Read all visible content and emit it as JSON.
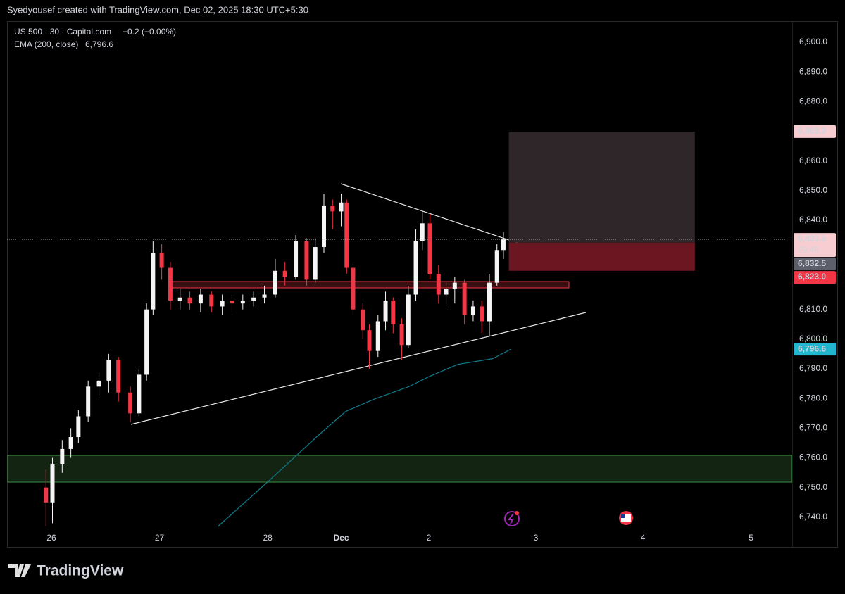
{
  "header": {
    "text": "Syedyousef created with TradingView.com, Dec 02, 2025 18:30 UTC+5:30"
  },
  "chart_data": {
    "type": "candlestick",
    "symbol": "US 500 · 30 · Capital.com",
    "change": "−0.2 (−0.00%)",
    "up_color": "#f5f5f5",
    "down_color": "#f23645",
    "x": [
      -0.05,
      0.01,
      0.1,
      0.18,
      0.25,
      0.34,
      0.44,
      0.53,
      0.62,
      0.73,
      0.81,
      0.88,
      0.94,
      1.02,
      1.1,
      1.19,
      1.28,
      1.38,
      1.48,
      1.58,
      1.67,
      1.77,
      1.87,
      1.97,
      2.07,
      2.16,
      2.26,
      2.36,
      2.44,
      2.52,
      2.6,
      2.68,
      2.73,
      2.79,
      2.88,
      2.94,
      3.02,
      3.09,
      3.16,
      3.24,
      3.3,
      3.37,
      3.43,
      3.5,
      3.58,
      3.65,
      3.73,
      3.82,
      3.9,
      3.98,
      4.05,
      4.12,
      4.18
    ],
    "open": [
      6750,
      6745,
      6758,
      6763,
      6767,
      6774,
      6784,
      6786,
      6793,
      6782,
      6775,
      6788,
      6810,
      6829,
      6824,
      6813,
      6814,
      6812,
      6815,
      6811,
      6813,
      6812,
      6813,
      6814,
      6815,
      6823,
      6821,
      6833,
      6820,
      6831,
      6845,
      6843,
      6846,
      6824,
      6810,
      6803,
      6796,
      6806,
      6813,
      6805,
      6798,
      6815,
      6833,
      6839,
      6822,
      6815,
      6817,
      6819,
      6808,
      6811,
      6806,
      6819,
      6830
    ],
    "high": [
      6756,
      6760,
      6766,
      6770,
      6776,
      6786,
      6789,
      6795,
      6794,
      6784,
      6790,
      6812,
      6833,
      6832,
      6826,
      6817,
      6816,
      6817,
      6816,
      6815,
      6815,
      6815,
      6816,
      6818,
      6827,
      6826,
      6835,
      6834,
      6834,
      6849,
      6847,
      6849,
      6847,
      6826,
      6812,
      6805,
      6808,
      6816,
      6814,
      6807,
      6818,
      6837,
      6843,
      6842,
      6825,
      6819,
      6821,
      6820,
      6813,
      6813,
      6822,
      6832,
      6836
    ],
    "low": [
      6737,
      6738,
      6755,
      6760,
      6765,
      6772,
      6780,
      6782,
      6779,
      6772,
      6774,
      6786,
      6808,
      6820,
      6810,
      6810,
      6810,
      6809,
      6809,
      6808,
      6809,
      6810,
      6811,
      6812,
      6814,
      6818,
      6820,
      6818,
      6819,
      6829,
      6837,
      6838,
      6822,
      6808,
      6800,
      6790,
      6794,
      6803,
      6802,
      6793,
      6797,
      6813,
      6830,
      6820,
      6812,
      6811,
      6812,
      6805,
      6806,
      6802,
      6801,
      6818,
      6827
    ],
    "close": [
      6745,
      6758,
      6763,
      6767,
      6774,
      6784,
      6786,
      6793,
      6782,
      6775,
      6788,
      6810,
      6829,
      6824,
      6813,
      6814,
      6812,
      6815,
      6811,
      6813,
      6812,
      6813,
      6814,
      6815,
      6823,
      6821,
      6833,
      6820,
      6831,
      6845,
      6843,
      6846,
      6824,
      6810,
      6803,
      6796,
      6806,
      6813,
      6805,
      6798,
      6815,
      6833,
      6839,
      6822,
      6815,
      6817,
      6819,
      6808,
      6811,
      6806,
      6819,
      6830,
      6833.6
    ],
    "ema": {
      "name": "EMA (200, close)",
      "color": "#0e7c8c",
      "x": [
        1.54,
        2.0,
        2.46,
        2.72,
        2.98,
        3.3,
        3.5,
        3.76,
        4.08,
        4.25
      ],
      "values": [
        6736.9,
        6751.9,
        6767.3,
        6775.6,
        6779.7,
        6783.9,
        6787.5,
        6791.5,
        6793.4,
        6796.6
      ],
      "value_labels": [
        null,
        null,
        null,
        null,
        null,
        null,
        null,
        null,
        null,
        "6,796.6"
      ]
    },
    "position": {
      "x": [
        4.23,
        5.95
      ],
      "target": 6869.9,
      "entry": 6832.5,
      "stop": 6823.0,
      "target_label": "6,869.9",
      "entry_label": "6,832.5",
      "stop_label": "6,823.0"
    },
    "last_price": {
      "value": 6833.6,
      "label": "6,833.6",
      "countdown": "29:49"
    },
    "xlim": [
      -0.41,
      6.85
    ],
    "xticks": [
      {
        "value": 0,
        "label": "26"
      },
      {
        "value": 1,
        "label": "27"
      },
      {
        "value": 2,
        "label": "28"
      },
      {
        "value": 2.68,
        "label": "Dec"
      },
      {
        "value": 3.49,
        "label": "2"
      },
      {
        "value": 4.48,
        "label": "3"
      },
      {
        "value": 5.47,
        "label": "4"
      },
      {
        "value": 6.47,
        "label": "5"
      }
    ],
    "ylim": [
      6730.5,
      6907.1
    ],
    "yticks": [
      {
        "value": 6740,
        "label": "6,740.0"
      },
      {
        "value": 6750,
        "label": "6,750.0"
      },
      {
        "value": 6760,
        "label": "6,760.0"
      },
      {
        "value": 6770,
        "label": "6,770.0"
      },
      {
        "value": 6780,
        "label": "6,780.0"
      },
      {
        "value": 6790,
        "label": "6,790.0"
      },
      {
        "value": 6800,
        "label": "6,800.0"
      },
      {
        "value": 6810,
        "label": "6,810.0"
      },
      {
        "value": 6840,
        "label": "6,840.0"
      },
      {
        "value": 6850,
        "label": "6,850.0"
      },
      {
        "value": 6860,
        "label": "6,860.0"
      },
      {
        "value": 6880,
        "label": "6,880.0"
      },
      {
        "value": 6890,
        "label": "6,890.0"
      },
      {
        "value": 6900,
        "label": "6,900.0"
      }
    ],
    "grid": false
  },
  "footer": {
    "brand": "TradingView"
  }
}
